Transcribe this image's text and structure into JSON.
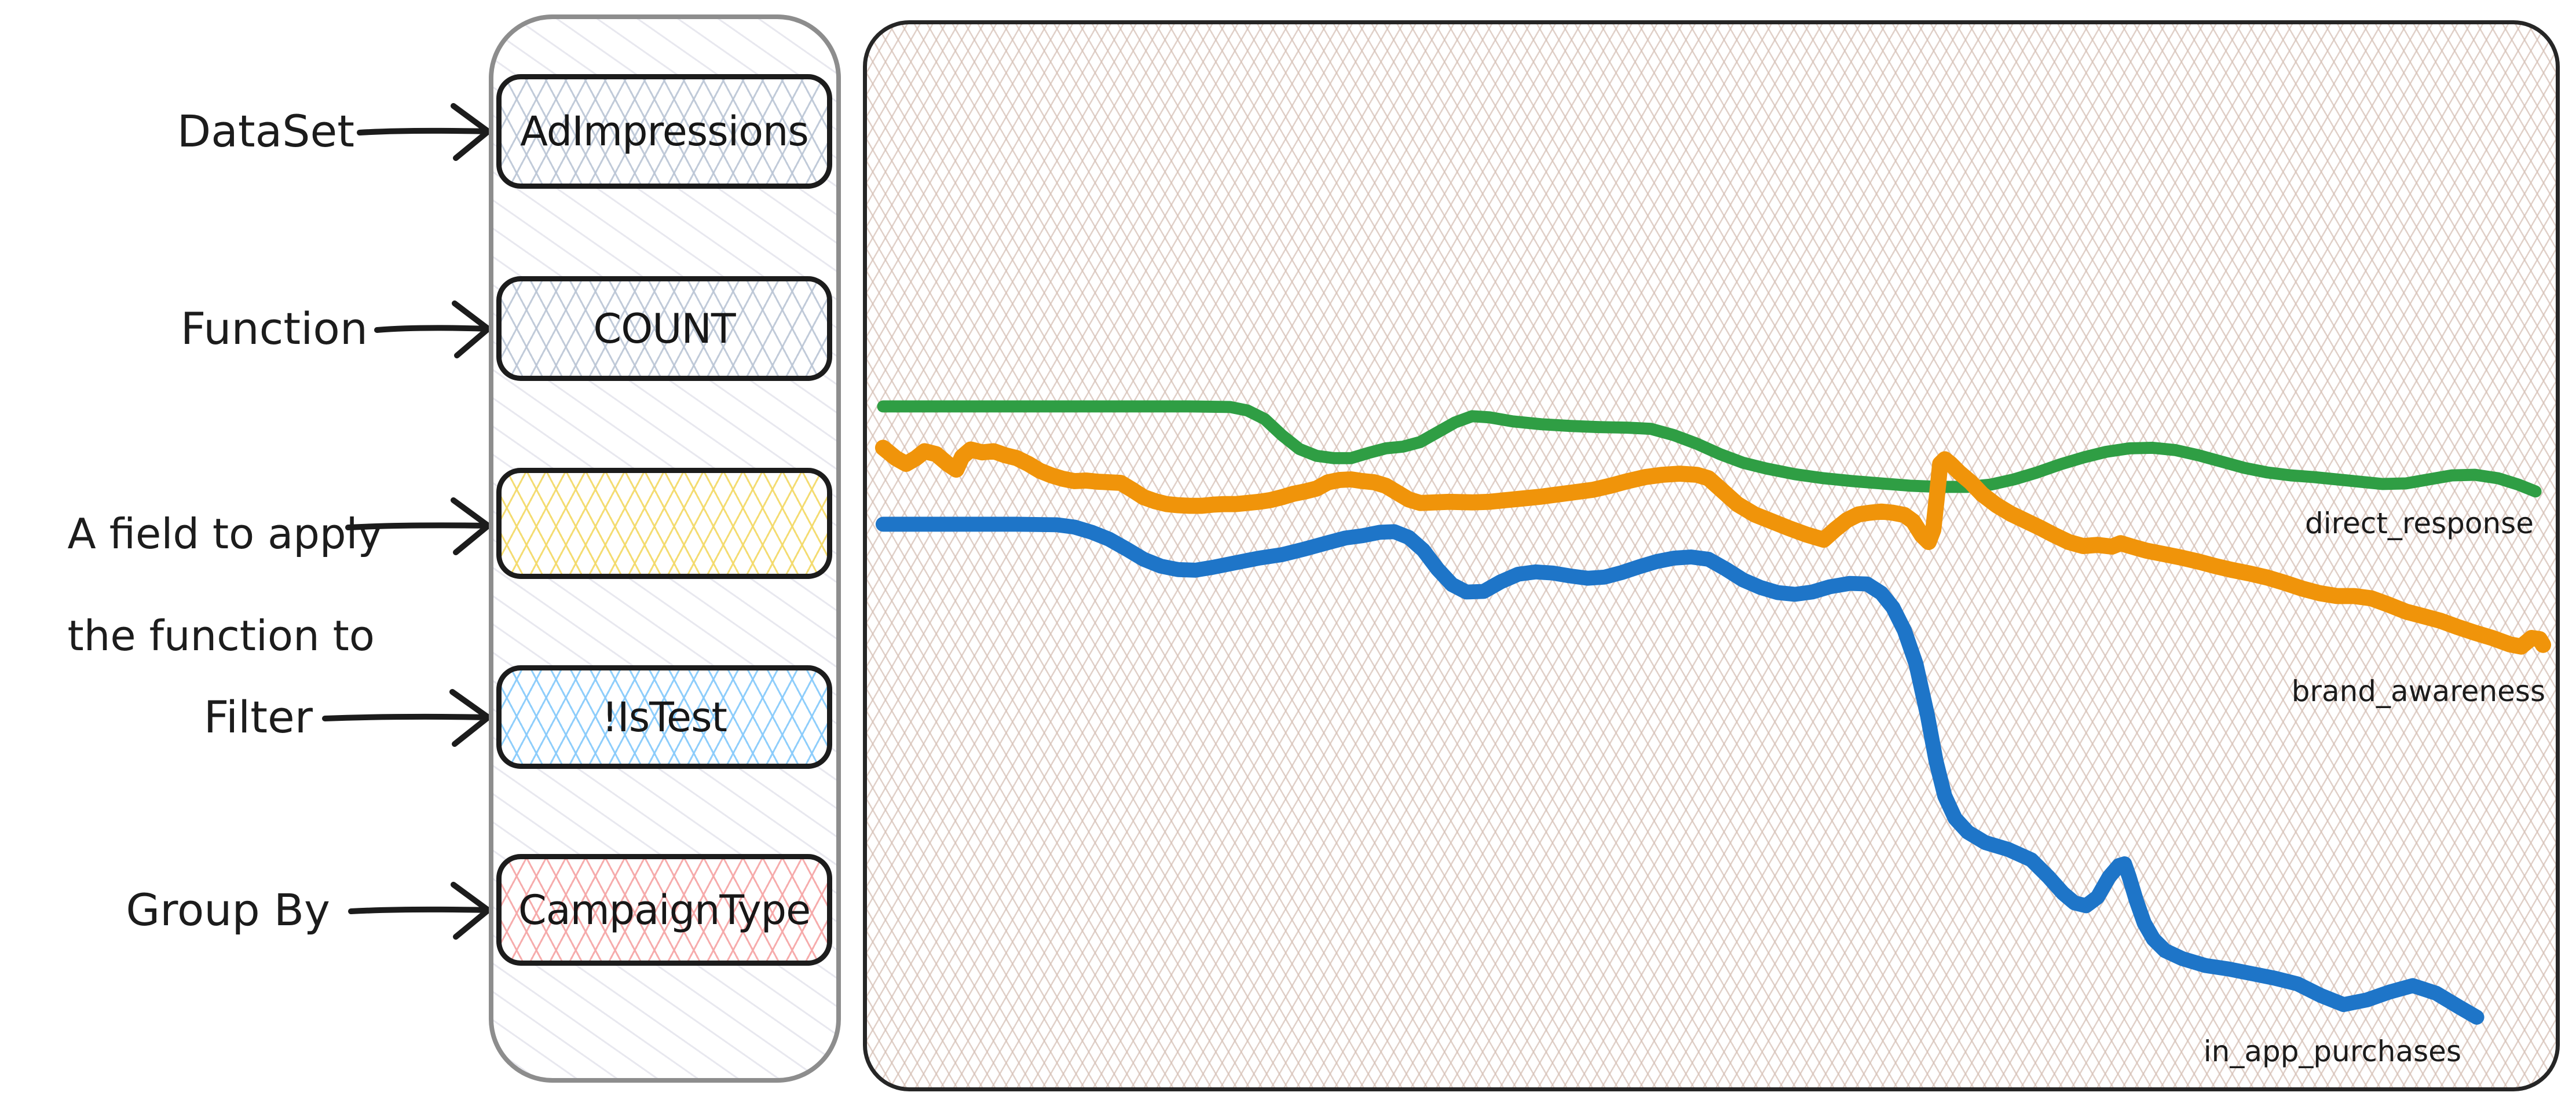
{
  "query_builder": {
    "rows": [
      {
        "label_line1": "DataSet",
        "label_line2": "",
        "value": "AdImpressions",
        "scheme": "slate"
      },
      {
        "label_line1": "Function",
        "label_line2": "",
        "value": "COUNT",
        "scheme": "slate"
      },
      {
        "label_line1": "A field to apply",
        "label_line2": "the function to",
        "value": "",
        "scheme": "yellow"
      },
      {
        "label_line1": "Filter",
        "label_line2": "",
        "value": "!IsTest",
        "scheme": "blue"
      },
      {
        "label_line1": "Group By",
        "label_line2": "",
        "value": "CampaignType",
        "scheme": "red"
      }
    ],
    "hatch_colors": {
      "slate": "#bac5d5",
      "yellow": "#f3da6a",
      "blue": "#89cbfb",
      "red": "#f6a8a8",
      "container": "#dcdce4"
    }
  },
  "chart_data": {
    "type": "line",
    "title": "",
    "axes_visible": false,
    "grid": "crosshatch-sketch-background",
    "background_hatch_color": "#d6c0b6",
    "legend_position": "inline-right-of-lines",
    "units": "panel-local-pixels, y increases downward, panel 2930x1850",
    "series": [
      {
        "name": "direct_response",
        "color": "#2f9e44",
        "stroke_width": 21,
        "points": [
          [
            28,
            665
          ],
          [
            210,
            665
          ],
          [
            410,
            665
          ],
          [
            560,
            665
          ],
          [
            630,
            666
          ],
          [
            660,
            672
          ],
          [
            690,
            687
          ],
          [
            720,
            715
          ],
          [
            750,
            739
          ],
          [
            780,
            751
          ],
          [
            810,
            755
          ],
          [
            840,
            755
          ],
          [
            870,
            746
          ],
          [
            900,
            738
          ],
          [
            930,
            735
          ],
          [
            960,
            727
          ],
          [
            990,
            710
          ],
          [
            1020,
            693
          ],
          [
            1050,
            682
          ],
          [
            1080,
            684
          ],
          [
            1120,
            691
          ],
          [
            1170,
            696
          ],
          [
            1220,
            699
          ],
          [
            1270,
            701
          ],
          [
            1320,
            702
          ],
          [
            1360,
            704
          ],
          [
            1400,
            715
          ],
          [
            1440,
            730
          ],
          [
            1480,
            748
          ],
          [
            1520,
            763
          ],
          [
            1560,
            773
          ],
          [
            1610,
            783
          ],
          [
            1660,
            790
          ],
          [
            1710,
            795
          ],
          [
            1760,
            799
          ],
          [
            1810,
            803
          ],
          [
            1860,
            805
          ],
          [
            1910,
            805
          ],
          [
            1950,
            801
          ],
          [
            1990,
            792
          ],
          [
            2030,
            780
          ],
          [
            2070,
            766
          ],
          [
            2110,
            754
          ],
          [
            2150,
            744
          ],
          [
            2190,
            738
          ],
          [
            2230,
            737
          ],
          [
            2270,
            741
          ],
          [
            2310,
            750
          ],
          [
            2350,
            761
          ],
          [
            2390,
            772
          ],
          [
            2430,
            780
          ],
          [
            2470,
            785
          ],
          [
            2510,
            788
          ],
          [
            2550,
            792
          ],
          [
            2590,
            796
          ],
          [
            2630,
            800
          ],
          [
            2670,
            799
          ],
          [
            2710,
            792
          ],
          [
            2750,
            785
          ],
          [
            2790,
            784
          ],
          [
            2830,
            790
          ],
          [
            2865,
            801
          ],
          [
            2895,
            813
          ]
        ]
      },
      {
        "name": "brand_awareness",
        "color": "#f0940a",
        "stroke_width": 28,
        "points": [
          [
            28,
            737
          ],
          [
            50,
            755
          ],
          [
            68,
            765
          ],
          [
            85,
            755
          ],
          [
            100,
            743
          ],
          [
            120,
            748
          ],
          [
            140,
            765
          ],
          [
            155,
            775
          ],
          [
            165,
            753
          ],
          [
            180,
            740
          ],
          [
            200,
            745
          ],
          [
            220,
            743
          ],
          [
            240,
            750
          ],
          [
            260,
            755
          ],
          [
            280,
            765
          ],
          [
            300,
            777
          ],
          [
            320,
            785
          ],
          [
            340,
            791
          ],
          [
            360,
            795
          ],
          [
            380,
            794
          ],
          [
            400,
            796
          ],
          [
            420,
            797
          ],
          [
            440,
            798
          ],
          [
            460,
            810
          ],
          [
            480,
            823
          ],
          [
            500,
            830
          ],
          [
            520,
            835
          ],
          [
            540,
            837
          ],
          [
            560,
            838
          ],
          [
            580,
            838
          ],
          [
            600,
            836
          ],
          [
            620,
            835
          ],
          [
            640,
            835
          ],
          [
            660,
            833
          ],
          [
            680,
            831
          ],
          [
            700,
            828
          ],
          [
            720,
            823
          ],
          [
            740,
            817
          ],
          [
            760,
            813
          ],
          [
            780,
            808
          ],
          [
            800,
            797
          ],
          [
            820,
            793
          ],
          [
            840,
            792
          ],
          [
            860,
            795
          ],
          [
            880,
            797
          ],
          [
            900,
            803
          ],
          [
            920,
            815
          ],
          [
            940,
            827
          ],
          [
            960,
            833
          ],
          [
            985,
            832
          ],
          [
            1010,
            831
          ],
          [
            1050,
            832
          ],
          [
            1080,
            831
          ],
          [
            1110,
            828
          ],
          [
            1140,
            825
          ],
          [
            1170,
            822
          ],
          [
            1200,
            818
          ],
          [
            1230,
            814
          ],
          [
            1260,
            810
          ],
          [
            1290,
            803
          ],
          [
            1320,
            795
          ],
          [
            1350,
            788
          ],
          [
            1380,
            784
          ],
          [
            1410,
            782
          ],
          [
            1440,
            784
          ],
          [
            1460,
            790
          ],
          [
            1480,
            808
          ],
          [
            1510,
            835
          ],
          [
            1540,
            853
          ],
          [
            1570,
            865
          ],
          [
            1600,
            877
          ],
          [
            1630,
            888
          ],
          [
            1660,
            897
          ],
          [
            1680,
            879
          ],
          [
            1700,
            863
          ],
          [
            1720,
            853
          ],
          [
            1740,
            850
          ],
          [
            1760,
            848
          ],
          [
            1780,
            850
          ],
          [
            1800,
            854
          ],
          [
            1815,
            865
          ],
          [
            1830,
            889
          ],
          [
            1842,
            901
          ],
          [
            1850,
            880
          ],
          [
            1856,
            825
          ],
          [
            1862,
            765
          ],
          [
            1870,
            757
          ],
          [
            1880,
            765
          ],
          [
            1895,
            780
          ],
          [
            1915,
            797
          ],
          [
            1935,
            818
          ],
          [
            1960,
            837
          ],
          [
            1985,
            852
          ],
          [
            2010,
            864
          ],
          [
            2035,
            876
          ],
          [
            2060,
            889
          ],
          [
            2085,
            901
          ],
          [
            2110,
            908
          ],
          [
            2135,
            906
          ],
          [
            2160,
            909
          ],
          [
            2175,
            903
          ],
          [
            2195,
            909
          ],
          [
            2220,
            916
          ],
          [
            2250,
            922
          ],
          [
            2280,
            928
          ],
          [
            2310,
            935
          ],
          [
            2340,
            943
          ],
          [
            2370,
            950
          ],
          [
            2400,
            956
          ],
          [
            2430,
            963
          ],
          [
            2460,
            972
          ],
          [
            2490,
            982
          ],
          [
            2520,
            990
          ],
          [
            2550,
            995
          ],
          [
            2580,
            995
          ],
          [
            2610,
            999
          ],
          [
            2640,
            1010
          ],
          [
            2670,
            1022
          ],
          [
            2700,
            1030
          ],
          [
            2730,
            1038
          ],
          [
            2760,
            1049
          ],
          [
            2790,
            1059
          ],
          [
            2820,
            1068
          ],
          [
            2850,
            1079
          ],
          [
            2870,
            1083
          ],
          [
            2888,
            1068
          ],
          [
            2902,
            1070
          ],
          [
            2908,
            1080
          ]
        ]
      },
      {
        "name": "in_app_purchases",
        "color": "#1e75c8",
        "stroke_width": 26,
        "points": [
          [
            28,
            870
          ],
          [
            160,
            870
          ],
          [
            260,
            870
          ],
          [
            330,
            871
          ],
          [
            360,
            875
          ],
          [
            390,
            884
          ],
          [
            420,
            896
          ],
          [
            450,
            913
          ],
          [
            480,
            931
          ],
          [
            510,
            943
          ],
          [
            540,
            949
          ],
          [
            570,
            950
          ],
          [
            600,
            945
          ],
          [
            640,
            937
          ],
          [
            680,
            929
          ],
          [
            720,
            923
          ],
          [
            760,
            913
          ],
          [
            800,
            902
          ],
          [
            830,
            894
          ],
          [
            860,
            890
          ],
          [
            890,
            884
          ],
          [
            915,
            883
          ],
          [
            940,
            893
          ],
          [
            965,
            915
          ],
          [
            990,
            948
          ],
          [
            1015,
            975
          ],
          [
            1040,
            988
          ],
          [
            1070,
            987
          ],
          [
            1100,
            970
          ],
          [
            1130,
            957
          ],
          [
            1160,
            953
          ],
          [
            1190,
            955
          ],
          [
            1220,
            960
          ],
          [
            1250,
            964
          ],
          [
            1280,
            962
          ],
          [
            1310,
            954
          ],
          [
            1340,
            944
          ],
          [
            1370,
            935
          ],
          [
            1400,
            929
          ],
          [
            1430,
            927
          ],
          [
            1460,
            931
          ],
          [
            1490,
            948
          ],
          [
            1520,
            967
          ],
          [
            1550,
            980
          ],
          [
            1580,
            989
          ],
          [
            1610,
            992
          ],
          [
            1640,
            988
          ],
          [
            1670,
            979
          ],
          [
            1705,
            973
          ],
          [
            1735,
            974
          ],
          [
            1760,
            990
          ],
          [
            1780,
            1015
          ],
          [
            1800,
            1055
          ],
          [
            1820,
            1113
          ],
          [
            1840,
            1203
          ],
          [
            1855,
            1283
          ],
          [
            1870,
            1343
          ],
          [
            1888,
            1382
          ],
          [
            1910,
            1406
          ],
          [
            1940,
            1424
          ],
          [
            1980,
            1436
          ],
          [
            2020,
            1454
          ],
          [
            2050,
            1484
          ],
          [
            2075,
            1512
          ],
          [
            2095,
            1529
          ],
          [
            2115,
            1534
          ],
          [
            2135,
            1519
          ],
          [
            2155,
            1484
          ],
          [
            2172,
            1464
          ],
          [
            2182,
            1461
          ],
          [
            2190,
            1484
          ],
          [
            2202,
            1524
          ],
          [
            2216,
            1564
          ],
          [
            2232,
            1592
          ],
          [
            2252,
            1612
          ],
          [
            2282,
            1626
          ],
          [
            2322,
            1638
          ],
          [
            2362,
            1644
          ],
          [
            2402,
            1652
          ],
          [
            2442,
            1660
          ],
          [
            2482,
            1670
          ],
          [
            2522,
            1690
          ],
          [
            2562,
            1706
          ],
          [
            2602,
            1698
          ],
          [
            2642,
            1684
          ],
          [
            2682,
            1673
          ],
          [
            2722,
            1686
          ],
          [
            2762,
            1710
          ],
          [
            2793,
            1728
          ]
        ]
      }
    ]
  }
}
